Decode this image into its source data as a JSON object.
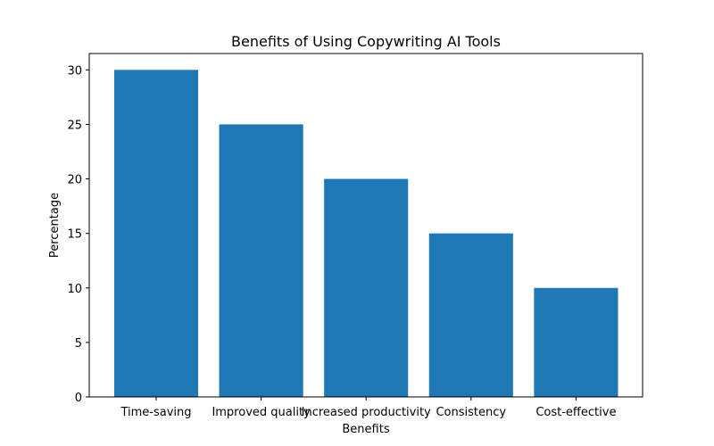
{
  "chart_data": {
    "type": "bar",
    "title": "Benefits of Using Copywriting AI Tools",
    "xlabel": "Benefits",
    "ylabel": "Percentage",
    "categories": [
      "Time-saving",
      "Improved quality",
      "Increased productivity",
      "Consistency",
      "Cost-effective"
    ],
    "values": [
      30,
      25,
      20,
      15,
      10
    ],
    "ylim": [
      0,
      31.5
    ],
    "yticks": [
      0,
      5,
      10,
      15,
      20,
      25,
      30
    ],
    "bar_color": "#1f77b4",
    "grid": false
  }
}
